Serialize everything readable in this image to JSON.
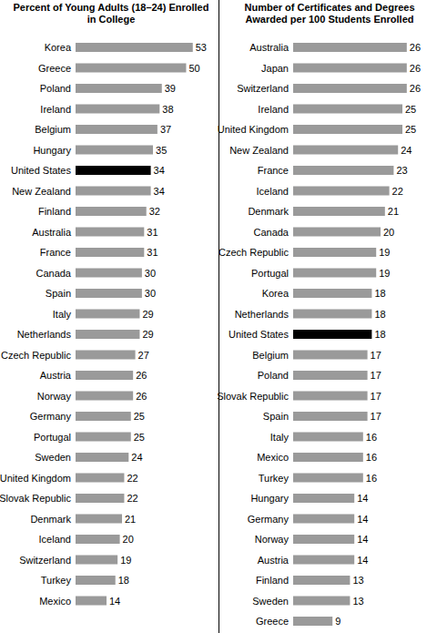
{
  "chart_data": [
    {
      "type": "bar",
      "orientation": "horizontal",
      "title": "Percent of Young Adults (18–24) Enrolled in College",
      "categories": [
        "Korea",
        "Greece",
        "Poland",
        "Ireland",
        "Belgium",
        "Hungary",
        "United States",
        "New Zealand",
        "Finland",
        "Australia",
        "France",
        "Canada",
        "Spain",
        "Italy",
        "Netherlands",
        "Czech Republic",
        "Austria",
        "Norway",
        "Germany",
        "Portugal",
        "Sweden",
        "United Kingdom",
        "Slovak Republic",
        "Denmark",
        "Iceland",
        "Switzerland",
        "Turkey",
        "Mexico"
      ],
      "values": [
        53,
        50,
        39,
        38,
        37,
        35,
        34,
        34,
        32,
        31,
        31,
        30,
        30,
        29,
        29,
        27,
        26,
        26,
        25,
        25,
        24,
        22,
        22,
        21,
        20,
        19,
        18,
        14
      ],
      "colors": [
        "#9a9a9a",
        "#9a9a9a",
        "#9a9a9a",
        "#9a9a9a",
        "#9a9a9a",
        "#9a9a9a",
        "#000000",
        "#9a9a9a",
        "#9a9a9a",
        "#9a9a9a",
        "#9a9a9a",
        "#9a9a9a",
        "#9a9a9a",
        "#9a9a9a",
        "#9a9a9a",
        "#9a9a9a",
        "#9a9a9a",
        "#9a9a9a",
        "#9a9a9a",
        "#9a9a9a",
        "#9a9a9a",
        "#9a9a9a",
        "#9a9a9a",
        "#9a9a9a",
        "#9a9a9a",
        "#9a9a9a",
        "#9a9a9a",
        "#9a9a9a"
      ],
      "xlim": [
        0,
        55
      ],
      "data_labels": true,
      "tick_labels": "y",
      "grid": false
    },
    {
      "type": "bar",
      "orientation": "horizontal",
      "title": "Number of Certificates and Degrees Awarded per 100 Students Enrolled",
      "categories": [
        "Australia",
        "Japan",
        "Switzerland",
        "Ireland",
        "United Kingdom",
        "New Zealand",
        "France",
        "Iceland",
        "Denmark",
        "Canada",
        "Czech Republic",
        "Portugal",
        "Korea",
        "Netherlands",
        "United States",
        "Belgium",
        "Poland",
        "Slovak Republic",
        "Spain",
        "Italy",
        "Mexico",
        "Turkey",
        "Hungary",
        "Germany",
        "Norway",
        "Austria",
        "Finland",
        "Sweden",
        "Greece"
      ],
      "values": [
        26,
        26,
        26,
        25,
        25,
        24,
        23,
        22,
        21,
        20,
        19,
        19,
        18,
        18,
        18,
        17,
        17,
        17,
        17,
        16,
        16,
        16,
        14,
        14,
        14,
        14,
        13,
        13,
        9
      ],
      "colors": [
        "#9a9a9a",
        "#9a9a9a",
        "#9a9a9a",
        "#9a9a9a",
        "#9a9a9a",
        "#9a9a9a",
        "#9a9a9a",
        "#9a9a9a",
        "#9a9a9a",
        "#9a9a9a",
        "#9a9a9a",
        "#9a9a9a",
        "#9a9a9a",
        "#9a9a9a",
        "#000000",
        "#9a9a9a",
        "#9a9a9a",
        "#9a9a9a",
        "#9a9a9a",
        "#9a9a9a",
        "#9a9a9a",
        "#9a9a9a",
        "#9a9a9a",
        "#9a9a9a",
        "#9a9a9a",
        "#9a9a9a",
        "#9a9a9a",
        "#9a9a9a",
        "#9a9a9a"
      ],
      "xlim": [
        0,
        27
      ],
      "data_labels": true,
      "tick_labels": "y",
      "grid": false
    }
  ]
}
